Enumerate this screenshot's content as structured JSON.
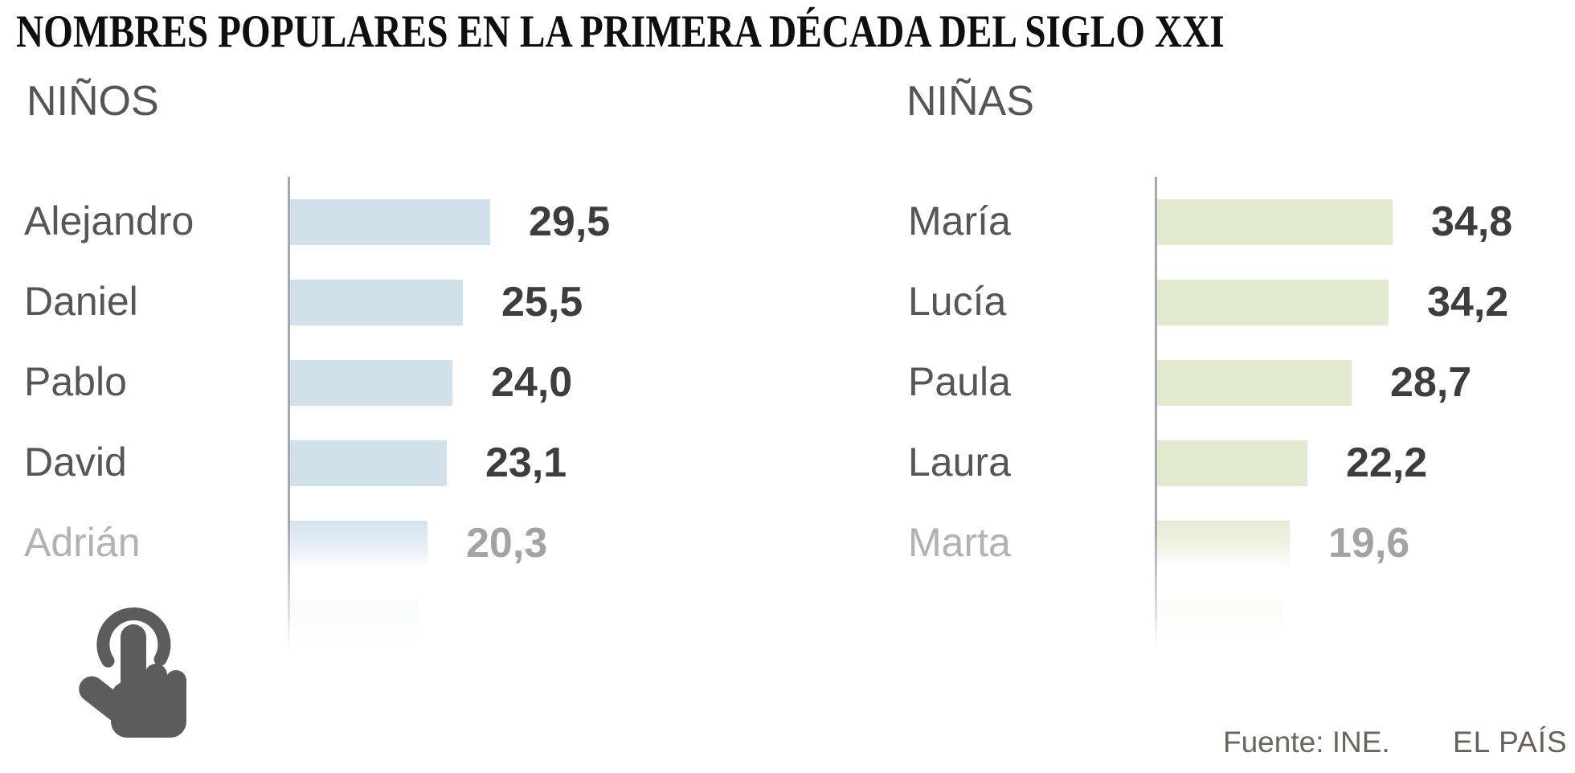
{
  "title": "NOMBRES POPULARES EN LA PRIMERA DÉCADA DEL SIGLO XXI",
  "footer": {
    "source": "Fuente: INE.",
    "brand": "EL PAÍS"
  },
  "colors": {
    "boys_bar": "#d0e1ec",
    "girls_bar": "#e2eacf",
    "axis": "#a6a8aa",
    "name_text": "#55565a",
    "value_text": "#3c3d3f",
    "faded_text": "#adadad",
    "tap_icon": "#5c5c5c"
  },
  "icons": {
    "tap": "tap-hand-icon"
  },
  "chart_data": [
    {
      "type": "bar",
      "orientation": "horizontal",
      "title": "NIÑOS",
      "categories": [
        "Alejandro",
        "Daniel",
        "Pablo",
        "David",
        "Adrián"
      ],
      "values": [
        29.5,
        25.5,
        24.0,
        23.1,
        20.3
      ],
      "displays": [
        "29,5",
        "25,5",
        "24,0",
        "23,1",
        "20,3"
      ],
      "value_format": "comma-decimal",
      "faded_row_index": 4,
      "partial_bar_value": 19,
      "cutoff_row": true,
      "grid": false,
      "legend": false
    },
    {
      "type": "bar",
      "orientation": "horizontal",
      "title": "NIÑAS",
      "categories": [
        "María",
        "Lucía",
        "Paula",
        "Laura",
        "Marta"
      ],
      "values": [
        34.8,
        34.2,
        28.7,
        22.2,
        19.6
      ],
      "displays": [
        "34,8",
        "34,2",
        "28,7",
        "22,2",
        "19,6"
      ],
      "value_format": "comma-decimal",
      "faded_row_index": 4,
      "partial_bar_value": 18.5,
      "cutoff_row": true,
      "grid": false,
      "legend": false
    }
  ]
}
